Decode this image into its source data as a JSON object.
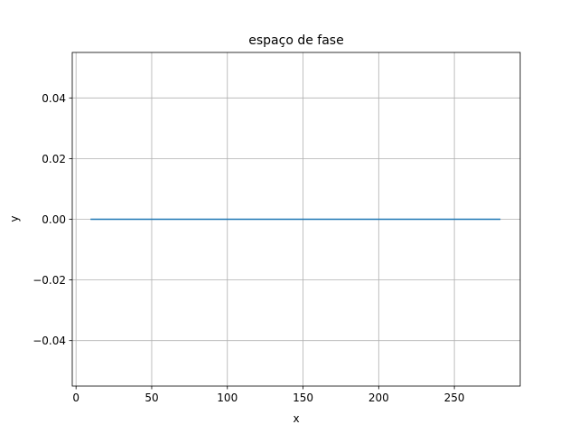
{
  "chart_data": {
    "type": "line",
    "title": "espaço de fase",
    "xlabel": "x",
    "ylabel": "y",
    "xlim": [
      -2.5,
      293.5
    ],
    "ylim": [
      -0.055,
      0.055
    ],
    "grid": true,
    "x_ticks": [
      {
        "value": 0,
        "label": "0"
      },
      {
        "value": 50,
        "label": "50"
      },
      {
        "value": 100,
        "label": "100"
      },
      {
        "value": 150,
        "label": "150"
      },
      {
        "value": 200,
        "label": "200"
      },
      {
        "value": 250,
        "label": "250"
      }
    ],
    "y_ticks": [
      {
        "value": -0.04,
        "label": "−0.04"
      },
      {
        "value": -0.02,
        "label": "−0.02"
      },
      {
        "value": 0.0,
        "label": "0.00"
      },
      {
        "value": 0.02,
        "label": "0.02"
      },
      {
        "value": 0.04,
        "label": "0.04"
      }
    ],
    "series": [
      {
        "color": "#1f77b4",
        "x": [
          10,
          280
        ],
        "y": [
          0,
          0
        ]
      }
    ]
  }
}
